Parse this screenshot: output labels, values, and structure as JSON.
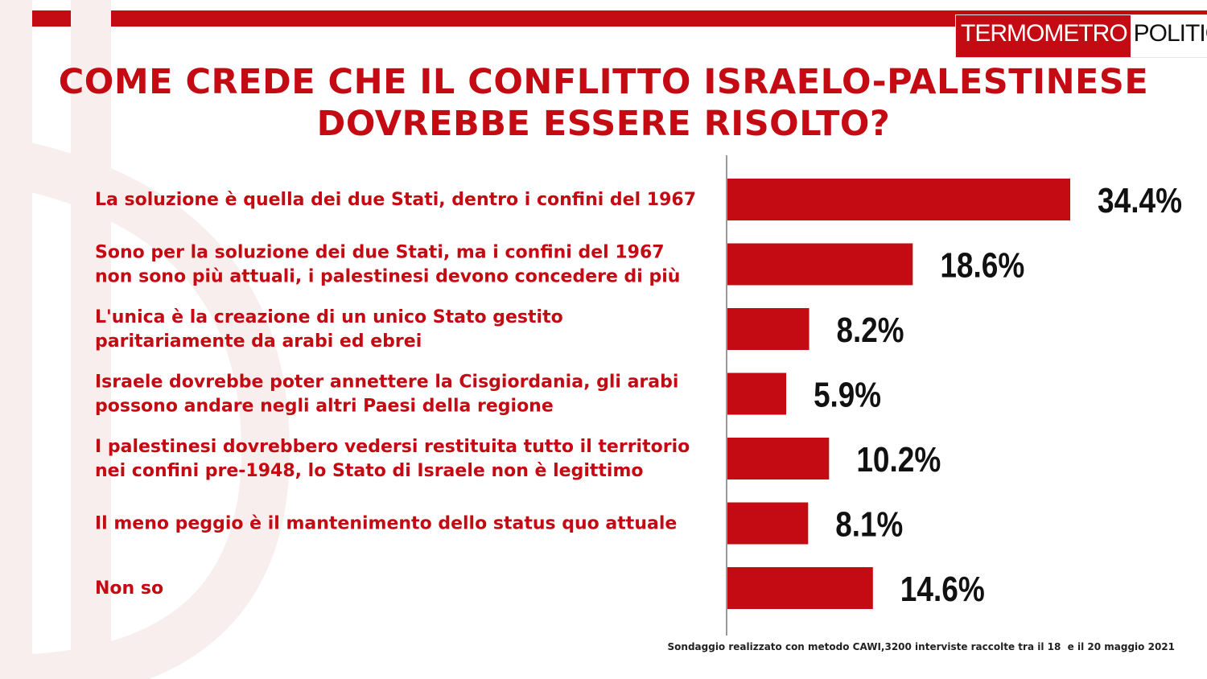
{
  "brand": {
    "part1": "TERMOMETRO",
    "part2": "POLITICO"
  },
  "title_lines": [
    "COME CREDE CHE IL CONFLITTO ISRAELO-PALESTINESE",
    "DOVREBBE ESSERE RISOLTO?"
  ],
  "colors": {
    "accent": "#c40a12",
    "value_text": "#111111",
    "background": "#ffffff"
  },
  "chart_data": {
    "type": "bar",
    "orientation": "horizontal",
    "categories": [
      [
        "La soluzione è quella dei due Stati, dentro i confini del 1967"
      ],
      [
        "Sono per la soluzione dei due Stati, ma i confini del 1967",
        "non sono più attuali, i palestinesi devono concedere di più"
      ],
      [
        "L'unica è la creazione di un unico Stato gestito",
        "paritariamente da arabi ed ebrei"
      ],
      [
        "Israele dovrebbe poter annettere la Cisgiordania, gli arabi",
        "possono andare negli altri Paesi della regione"
      ],
      [
        "I palestinesi dovrebbero vedersi restituita tutto il territorio",
        "nei confini pre-1948, lo Stato di Israele non è legittimo"
      ],
      [
        "Il meno peggio è il mantenimento dello status quo attuale"
      ],
      [
        "Non so"
      ]
    ],
    "values": [
      34.4,
      18.6,
      8.2,
      5.9,
      10.2,
      8.1,
      14.6
    ],
    "value_labels": [
      "34.4%",
      "18.6%",
      "8.2%",
      "5.9%",
      "10.2%",
      "8.1%",
      "14.6%"
    ],
    "unit": "%",
    "xlim": [
      0,
      40
    ],
    "grid": false,
    "legend": "none"
  },
  "footnote": "Sondaggio realizzato con metodo CAWI,3200 interviste raccolte tra il 18  e il 20 maggio 2021"
}
